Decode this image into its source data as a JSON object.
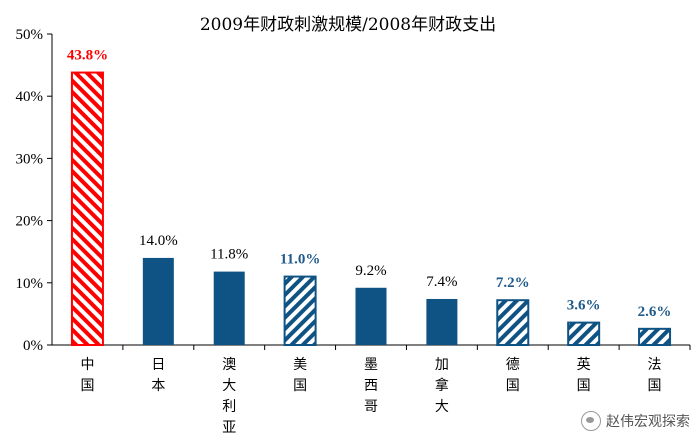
{
  "chart_data": {
    "type": "bar",
    "title": "2009年财政刺激规模/2008年财政支出",
    "categories": [
      "中国",
      "日本",
      "澳大利亚",
      "美国",
      "墨西哥",
      "加拿大",
      "德国",
      "英国",
      "法国"
    ],
    "values": [
      43.8,
      14.0,
      11.8,
      11.0,
      9.2,
      7.4,
      7.2,
      3.6,
      2.6
    ],
    "data_labels": [
      "43.8%",
      "14.0%",
      "11.8%",
      "11.0%",
      "9.2%",
      "7.4%",
      "7.2%",
      "3.6%",
      "2.6%"
    ],
    "styles": [
      "red-hatch",
      "solid",
      "solid",
      "blue-hatch",
      "solid",
      "solid",
      "blue-hatch",
      "blue-hatch",
      "blue-hatch"
    ],
    "ylim": [
      0,
      50
    ],
    "yticks": [
      "0%",
      "10%",
      "20%",
      "30%",
      "40%",
      "50%"
    ],
    "ytick_values": [
      0,
      10,
      20,
      30,
      40,
      50
    ],
    "xlabel": "",
    "ylabel": "",
    "grid": false,
    "colors": {
      "solid": "#0f5284",
      "blue_hatch": "#0f5284",
      "red_hatch": "#ff0000",
      "label_dark": "#000000",
      "label_blue": "#1f5a8a",
      "label_red": "#ff0000"
    }
  },
  "watermark": {
    "text": "赵伟宏观探索",
    "icon": "wechat-icon"
  }
}
